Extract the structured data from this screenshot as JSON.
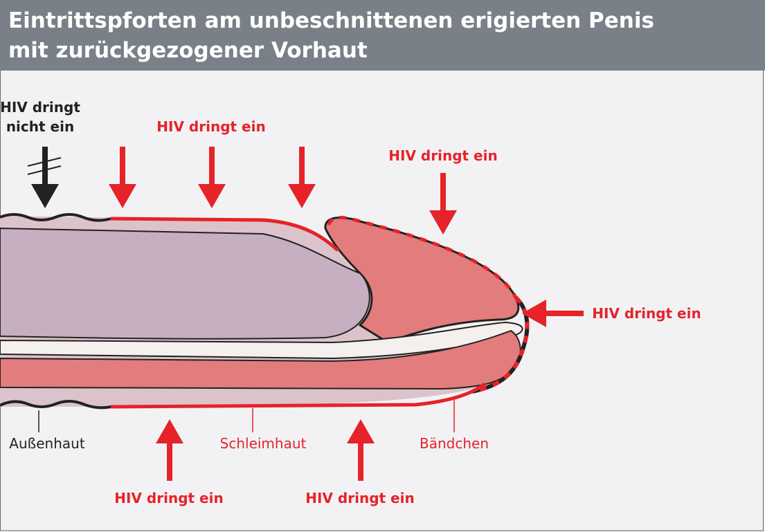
{
  "header": {
    "title_lines": [
      "Eintrittspforten am unbeschnittenen erigierten Penis",
      "mit zurückgezogener Vorhaut"
    ]
  },
  "labels": {
    "no_entry": [
      "HIV dringt",
      "nicht ein"
    ],
    "entry": [
      "HIV dringt ein",
      "HIV dringt ein",
      "HIV dringt ein",
      "HIV dringt ein",
      "HIV dringt ein"
    ],
    "parts": [
      "Außenhaut",
      "Schleimhaut",
      "Bändchen"
    ]
  }
}
